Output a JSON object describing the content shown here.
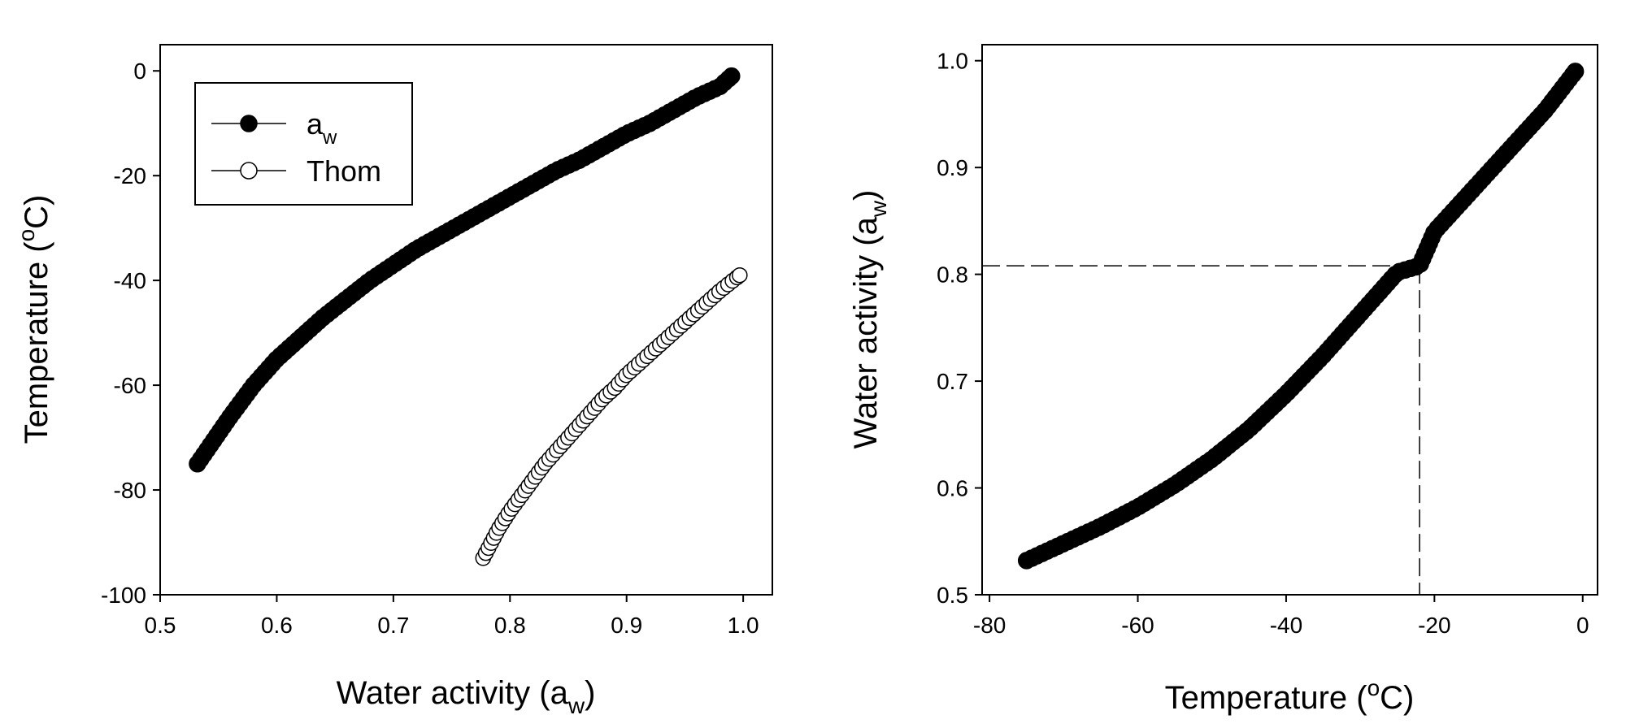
{
  "chart_data": [
    {
      "type": "scatter",
      "xlabel": "Water activity (a",
      "xlabel_sub": "w",
      "xlabel_end": ")",
      "ylabel_pre": "Temperature (",
      "ylabel_sup": "o",
      "ylabel_post": "C)",
      "xlim": [
        0.5,
        1.025
      ],
      "ylim": [
        -100,
        5
      ],
      "xticks": [
        0.5,
        0.6,
        0.7,
        0.8,
        0.9,
        1.0
      ],
      "xtick_labels": [
        "0.5",
        "0.6",
        "0.7",
        "0.8",
        "0.9",
        "1.0"
      ],
      "yticks": [
        0,
        -20,
        -40,
        -60,
        -80,
        -100
      ],
      "ytick_labels": [
        "0",
        "-20",
        "-40",
        "-60",
        "-80",
        "-100"
      ],
      "grid": false,
      "legend_position": "top-left",
      "series": [
        {
          "name": "a",
          "name_sub": "w",
          "marker": "filled-circle",
          "color": "#000000",
          "x": [
            0.532,
            0.56,
            0.58,
            0.6,
            0.62,
            0.64,
            0.66,
            0.68,
            0.7,
            0.72,
            0.74,
            0.76,
            0.78,
            0.8,
            0.82,
            0.84,
            0.86,
            0.88,
            0.9,
            0.92,
            0.94,
            0.96,
            0.98,
            0.99
          ],
          "y": [
            -75,
            -66,
            -60,
            -55,
            -51,
            -47,
            -43.5,
            -40,
            -37,
            -34,
            -31.5,
            -29,
            -26.5,
            -24,
            -21.5,
            -19,
            -17,
            -14.5,
            -12,
            -10,
            -7.5,
            -5,
            -3,
            -1
          ]
        },
        {
          "name": "Thom",
          "marker": "open-circle",
          "color": "#000000",
          "x": [
            0.777,
            0.79,
            0.8,
            0.81,
            0.82,
            0.83,
            0.84,
            0.85,
            0.86,
            0.87,
            0.88,
            0.89,
            0.9,
            0.91,
            0.92,
            0.93,
            0.94,
            0.95,
            0.96,
            0.97,
            0.98,
            0.997
          ],
          "y": [
            -93,
            -87.5,
            -84,
            -81,
            -78,
            -75,
            -72.5,
            -70,
            -67.5,
            -65,
            -62.5,
            -60.5,
            -58,
            -56,
            -54,
            -52,
            -50,
            -48,
            -46,
            -44,
            -42,
            -39
          ]
        }
      ]
    },
    {
      "type": "scatter",
      "xlabel_pre": "Temperature (",
      "xlabel_sup": "o",
      "xlabel_post": "C)",
      "ylabel": "Water activity (a",
      "ylabel_sub": "w",
      "ylabel_end": ")",
      "xlim": [
        -81,
        2
      ],
      "ylim": [
        0.5,
        1.015
      ],
      "xticks": [
        -80,
        -60,
        -40,
        -20,
        0
      ],
      "xtick_labels": [
        "-80",
        "-60",
        "-40",
        "-20",
        "0"
      ],
      "yticks": [
        0.5,
        0.6,
        0.7,
        0.8,
        0.9,
        1.0
      ],
      "ytick_labels": [
        "0.5",
        "0.6",
        "0.7",
        "0.8",
        "0.9",
        "1.0"
      ],
      "grid": false,
      "reference_lines": {
        "x": -22,
        "y": 0.808,
        "style": "dashed"
      },
      "series": [
        {
          "marker": "filled-circle",
          "color": "#000000",
          "x": [
            -75,
            -70,
            -65,
            -60,
            -55,
            -50,
            -45,
            -40,
            -35,
            -30,
            -25,
            -22,
            -20,
            -15,
            -10,
            -5,
            -1
          ],
          "y": [
            0.532,
            0.548,
            0.564,
            0.582,
            0.603,
            0.627,
            0.655,
            0.688,
            0.724,
            0.763,
            0.802,
            0.808,
            0.84,
            0.878,
            0.916,
            0.954,
            0.99
          ]
        }
      ]
    }
  ]
}
